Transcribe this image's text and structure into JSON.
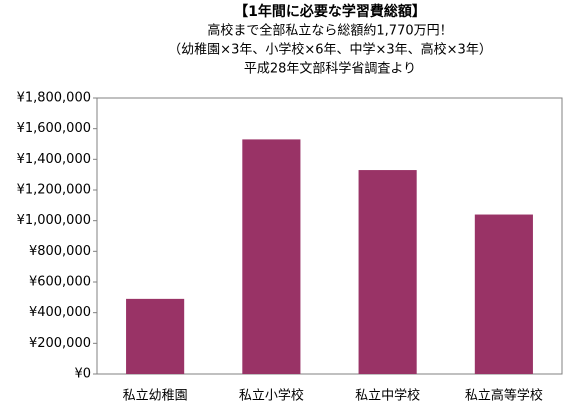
{
  "chart_data": {
    "type": "bar",
    "title": "【1年間に必要な学習費総額】",
    "subtitles": [
      "高校まで全部私立なら総額約1,770万円！",
      "（幼稚園×3年、小学校×6年、中学×3年、高校×3年）",
      "平成28年文部科学省調査より"
    ],
    "categories": [
      "私立幼稚園",
      "私立小学校",
      "私立中学校",
      "私立高等学校"
    ],
    "values": [
      490000,
      1530000,
      1330000,
      1040000
    ],
    "color": "#993366",
    "ylim": [
      0,
      1800000
    ],
    "yticks": [
      {
        "value": 0,
        "label": "¥0"
      },
      {
        "value": 200000,
        "label": "¥200,000"
      },
      {
        "value": 400000,
        "label": "¥400,000"
      },
      {
        "value": 600000,
        "label": "¥600,000"
      },
      {
        "value": 800000,
        "label": "¥800,000"
      },
      {
        "value": 1000000,
        "label": "¥1,000,000"
      },
      {
        "value": 1200000,
        "label": "¥1,200,000"
      },
      {
        "value": 1400000,
        "label": "¥1,400,000"
      },
      {
        "value": 1600000,
        "label": "¥1,600,000"
      },
      {
        "value": 1800000,
        "label": "¥1,800,000"
      }
    ],
    "grid": false
  }
}
